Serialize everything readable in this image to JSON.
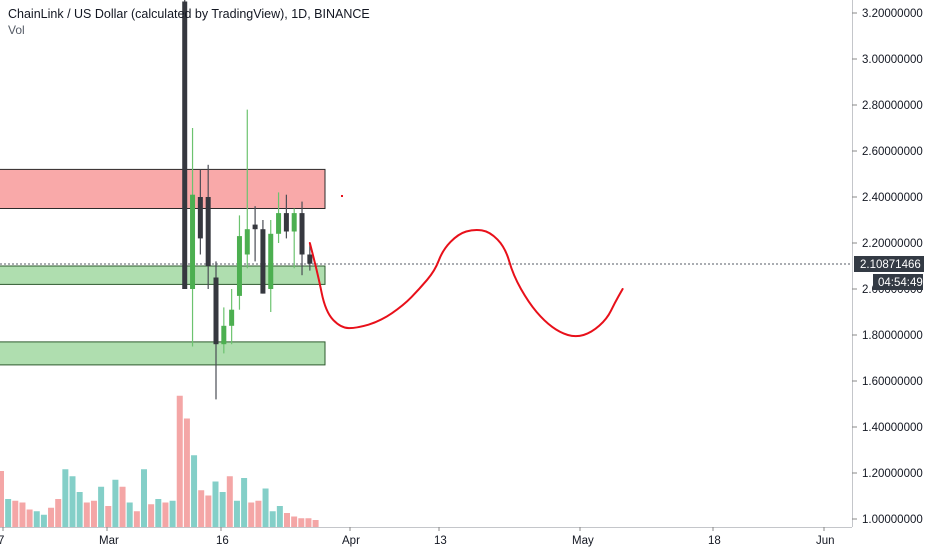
{
  "header": {
    "title": "ChainLink / US Dollar (calculated by TradingView), 1D, BINANCE",
    "volume_label": "Vol"
  },
  "price_axis": {
    "ticks": [
      "3.20000000",
      "3.00000000",
      "2.80000000",
      "2.60000000",
      "2.40000000",
      "2.20000000",
      "2.00000000",
      "1.80000000",
      "1.60000000",
      "1.40000000",
      "1.20000000",
      "1.00000000"
    ],
    "last_price_label": "2.10871466",
    "countdown_label": "04:54:49"
  },
  "time_axis": {
    "labels": [
      "7",
      "Mar",
      "16",
      "Apr",
      "13",
      "May",
      "18",
      "Jun"
    ]
  },
  "colors": {
    "up": "#4caf50",
    "down": "#36383f",
    "volume_up": "#84cfc8",
    "volume_down": "#f4a6a6",
    "resistance_zone": "#f89a9a",
    "support_zone": "#a6daa6",
    "drawing": "#e8101a",
    "axis_text": "#131722"
  },
  "chart_data": {
    "type": "candlestick",
    "title": "ChainLink / US Dollar (calculated by TradingView), 1D, BINANCE",
    "symbol": "LINKUSD",
    "interval": "1D",
    "exchange": "BINANCE",
    "y_range": [
      0.98,
      3.25
    ],
    "y_ticks": [
      3.2,
      3.0,
      2.8,
      2.6,
      2.4,
      2.2,
      2.0,
      1.8,
      1.6,
      1.4,
      1.2,
      1.0
    ],
    "last_price": 2.10871466,
    "x_labels": [
      "7",
      "Mar",
      "16",
      "Apr",
      "13",
      "May",
      "18",
      "Jun"
    ],
    "visible_candles": [
      {
        "date": "2020-03-12",
        "open": 3.25,
        "high": 3.3,
        "low": 2.0,
        "close": 2.0
      },
      {
        "date": "2020-03-13",
        "open": 2.0,
        "high": 2.7,
        "low": 1.75,
        "close": 2.41
      },
      {
        "date": "2020-03-14",
        "open": 2.4,
        "high": 2.52,
        "low": 2.15,
        "close": 2.22
      },
      {
        "date": "2020-03-15",
        "open": 2.4,
        "high": 2.54,
        "low": 2.0,
        "close": 2.1
      },
      {
        "date": "2020-03-16",
        "open": 2.05,
        "high": 2.12,
        "low": 1.52,
        "close": 1.76
      },
      {
        "date": "2020-03-17",
        "open": 1.76,
        "high": 1.92,
        "low": 1.72,
        "close": 1.84
      },
      {
        "date": "2020-03-18",
        "open": 1.84,
        "high": 2.0,
        "low": 1.76,
        "close": 1.91
      },
      {
        "date": "2020-03-19",
        "open": 1.97,
        "high": 2.32,
        "low": 1.91,
        "close": 2.23
      },
      {
        "date": "2020-03-20",
        "open": 2.15,
        "high": 2.78,
        "low": 2.09,
        "close": 2.26
      },
      {
        "date": "2020-03-21",
        "open": 2.28,
        "high": 2.36,
        "low": 2.12,
        "close": 2.26
      },
      {
        "date": "2020-03-22",
        "open": 2.26,
        "high": 2.3,
        "low": 1.98,
        "close": 1.98
      },
      {
        "date": "2020-03-23",
        "open": 2.0,
        "high": 2.3,
        "low": 1.9,
        "close": 2.24
      },
      {
        "date": "2020-03-24",
        "open": 2.24,
        "high": 2.42,
        "low": 2.2,
        "close": 2.33
      },
      {
        "date": "2020-03-25",
        "open": 2.33,
        "high": 2.41,
        "low": 2.22,
        "close": 2.25
      },
      {
        "date": "2020-03-26",
        "open": 2.25,
        "high": 2.35,
        "low": 2.09,
        "close": 2.33
      },
      {
        "date": "2020-03-27",
        "open": 2.33,
        "high": 2.38,
        "low": 2.06,
        "close": 2.15
      },
      {
        "date": "2020-03-28",
        "open": 2.15,
        "high": 2.2,
        "low": 2.08,
        "close": 2.11
      }
    ],
    "volume_bars": [
      {
        "dir": "down",
        "rel": 0.32
      },
      {
        "dir": "up",
        "rel": 0.16
      },
      {
        "dir": "down",
        "rel": 0.15
      },
      {
        "dir": "down",
        "rel": 0.14
      },
      {
        "dir": "down",
        "rel": 0.1
      },
      {
        "dir": "up",
        "rel": 0.09
      },
      {
        "dir": "up",
        "rel": 0.07
      },
      {
        "dir": "down",
        "rel": 0.11
      },
      {
        "dir": "down",
        "rel": 0.16
      },
      {
        "dir": "up",
        "rel": 0.33
      },
      {
        "dir": "up",
        "rel": 0.29
      },
      {
        "dir": "up",
        "rel": 0.2
      },
      {
        "dir": "down",
        "rel": 0.14
      },
      {
        "dir": "down",
        "rel": 0.15
      },
      {
        "dir": "up",
        "rel": 0.23
      },
      {
        "dir": "down",
        "rel": 0.12
      },
      {
        "dir": "up",
        "rel": 0.27
      },
      {
        "dir": "down",
        "rel": 0.23
      },
      {
        "dir": "up",
        "rel": 0.14
      },
      {
        "dir": "down",
        "rel": 0.09
      },
      {
        "dir": "up",
        "rel": 0.33
      },
      {
        "dir": "down",
        "rel": 0.13
      },
      {
        "dir": "up",
        "rel": 0.16
      },
      {
        "dir": "down",
        "rel": 0.14
      },
      {
        "dir": "up",
        "rel": 0.15
      },
      {
        "dir": "down",
        "rel": 0.75
      },
      {
        "dir": "down",
        "rel": 0.62
      },
      {
        "dir": "up",
        "rel": 0.41
      },
      {
        "dir": "down",
        "rel": 0.21
      },
      {
        "dir": "down",
        "rel": 0.18
      },
      {
        "dir": "up",
        "rel": 0.26
      },
      {
        "dir": "up",
        "rel": 0.2
      },
      {
        "dir": "down",
        "rel": 0.29
      },
      {
        "dir": "up",
        "rel": 0.15
      },
      {
        "dir": "up",
        "rel": 0.28
      },
      {
        "dir": "down",
        "rel": 0.14
      },
      {
        "dir": "down",
        "rel": 0.15
      },
      {
        "dir": "up",
        "rel": 0.22
      },
      {
        "dir": "up",
        "rel": 0.09
      },
      {
        "dir": "up",
        "rel": 0.12
      },
      {
        "dir": "down",
        "rel": 0.08
      },
      {
        "dir": "down",
        "rel": 0.06
      },
      {
        "dir": "down",
        "rel": 0.05
      },
      {
        "dir": "down",
        "rel": 0.05
      },
      {
        "dir": "down",
        "rel": 0.04
      }
    ],
    "zones": [
      {
        "kind": "resistance",
        "from": 2.35,
        "to": 2.52
      },
      {
        "kind": "support",
        "from": 2.02,
        "to": 2.1
      },
      {
        "kind": "support",
        "from": 1.67,
        "to": 1.77
      }
    ],
    "projection_path": [
      {
        "date": "2020-03-28",
        "price": 2.2
      },
      {
        "date": "2020-03-29",
        "price": 2.07
      },
      {
        "date": "2020-03-30",
        "price": 1.9
      },
      {
        "date": "2020-04-01",
        "price": 1.83
      },
      {
        "date": "2020-04-03",
        "price": 1.83
      },
      {
        "date": "2020-04-06",
        "price": 1.86
      },
      {
        "date": "2020-04-09",
        "price": 1.93
      },
      {
        "date": "2020-04-11",
        "price": 2.0
      },
      {
        "date": "2020-04-13",
        "price": 2.08
      },
      {
        "date": "2020-04-14",
        "price": 2.17
      },
      {
        "date": "2020-04-16",
        "price": 2.24
      },
      {
        "date": "2020-04-18",
        "price": 2.26
      },
      {
        "date": "2020-04-20",
        "price": 2.25
      },
      {
        "date": "2020-04-22",
        "price": 2.18
      },
      {
        "date": "2020-04-23",
        "price": 2.06
      },
      {
        "date": "2020-04-25",
        "price": 1.94
      },
      {
        "date": "2020-04-27",
        "price": 1.86
      },
      {
        "date": "2020-04-29",
        "price": 1.81
      },
      {
        "date": "2020-05-01",
        "price": 1.79
      },
      {
        "date": "2020-05-03",
        "price": 1.81
      },
      {
        "date": "2020-05-05",
        "price": 1.87
      },
      {
        "date": "2020-05-06",
        "price": 1.94
      },
      {
        "date": "2020-05-07",
        "price": 2.0
      }
    ]
  }
}
